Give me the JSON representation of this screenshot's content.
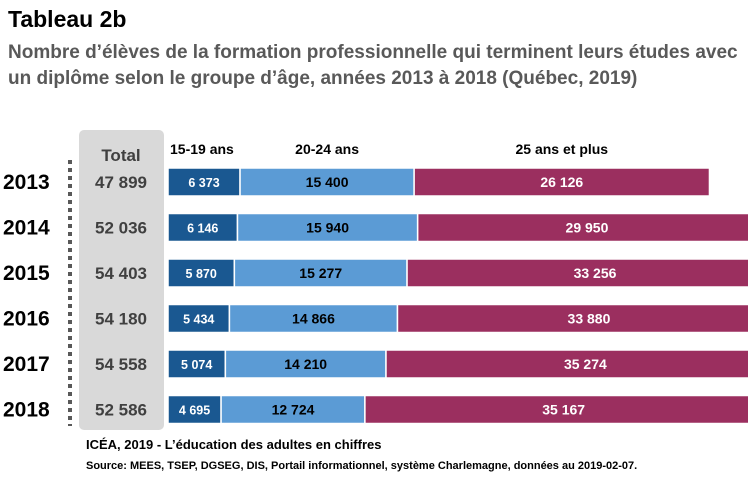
{
  "title": "Tableau 2b",
  "subtitle": "Nombre d’élèves de la formation professionnelle qui terminent leurs études avec un diplôme selon le groupe d’âge, années 2013 à 2018 (Québec, 2019)",
  "footer": {
    "source_line": "ICÉA, 2019 - L’éducation des adultes en chiffres",
    "source_detail": "Source: MEES, TSEP, DGSEG, DIS, Portail informationnel, système Charlemagne, données au 2019-02-07."
  },
  "chart_data": {
    "type": "bar",
    "orientation": "horizontal",
    "stacked": true,
    "categories": [
      "2013",
      "2014",
      "2015",
      "2016",
      "2017",
      "2018"
    ],
    "total_header": "Total",
    "totals": [
      "47 899",
      "52 036",
      "54 403",
      "54 180",
      "54 558",
      "52 586"
    ],
    "series": [
      {
        "name": "15-19 ans",
        "color": "#1a5891",
        "values": [
          6373,
          6146,
          5870,
          5434,
          5074,
          4695
        ],
        "labels": [
          "6 373",
          "6 146",
          "5 870",
          "5 434",
          "5 074",
          "4 695"
        ]
      },
      {
        "name": "20-24 ans",
        "color": "#5b9bd5",
        "values": [
          15400,
          15940,
          15277,
          14866,
          14210,
          12724
        ],
        "labels": [
          "15 400",
          "15 940",
          "15 277",
          "14 866",
          "14 210",
          "12 724"
        ]
      },
      {
        "name": "25 ans et plus",
        "color": "#9b2f5f",
        "values": [
          26126,
          29950,
          33256,
          33880,
          35274,
          35167
        ],
        "labels": [
          "26 126",
          "29 950",
          "33 256",
          "33 880",
          "35 274",
          "35 167"
        ]
      }
    ],
    "grid": false,
    "legend_placement": "top"
  }
}
